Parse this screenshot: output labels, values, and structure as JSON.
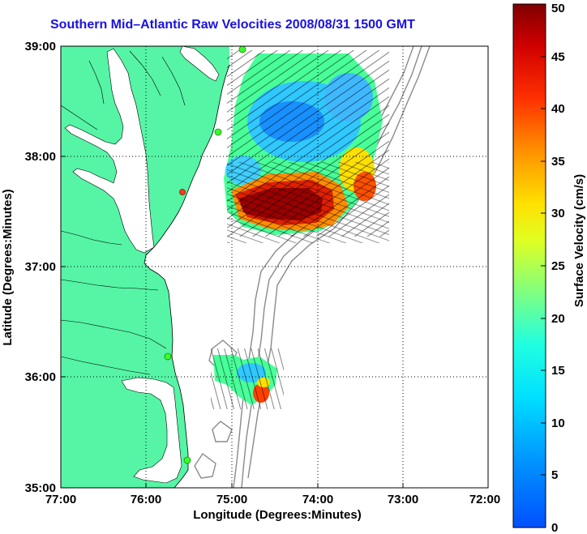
{
  "title": "Southern Mid–Atlantic Raw Velocities 2008/08/31 1500 GMT",
  "xlabel": "Longitude (Degrees:Minutes)",
  "ylabel": "Latitude (Degrees:Minutes)",
  "x_ticks": [
    "77:00",
    "76:00",
    "75:00",
    "74:00",
    "73:00",
    "72:00"
  ],
  "y_ticks": [
    "39:00",
    "38:00",
    "37:00",
    "36:00",
    "35:00"
  ],
  "colorbar": {
    "label": "Surface Velocity (cm/s)",
    "ticks": [
      "0",
      "5",
      "10",
      "15",
      "20",
      "25",
      "30",
      "35",
      "40",
      "45",
      "50"
    ]
  },
  "colors": {
    "land": "#55f5a5",
    "grid": "#000000",
    "title": "#1a12e0"
  }
}
